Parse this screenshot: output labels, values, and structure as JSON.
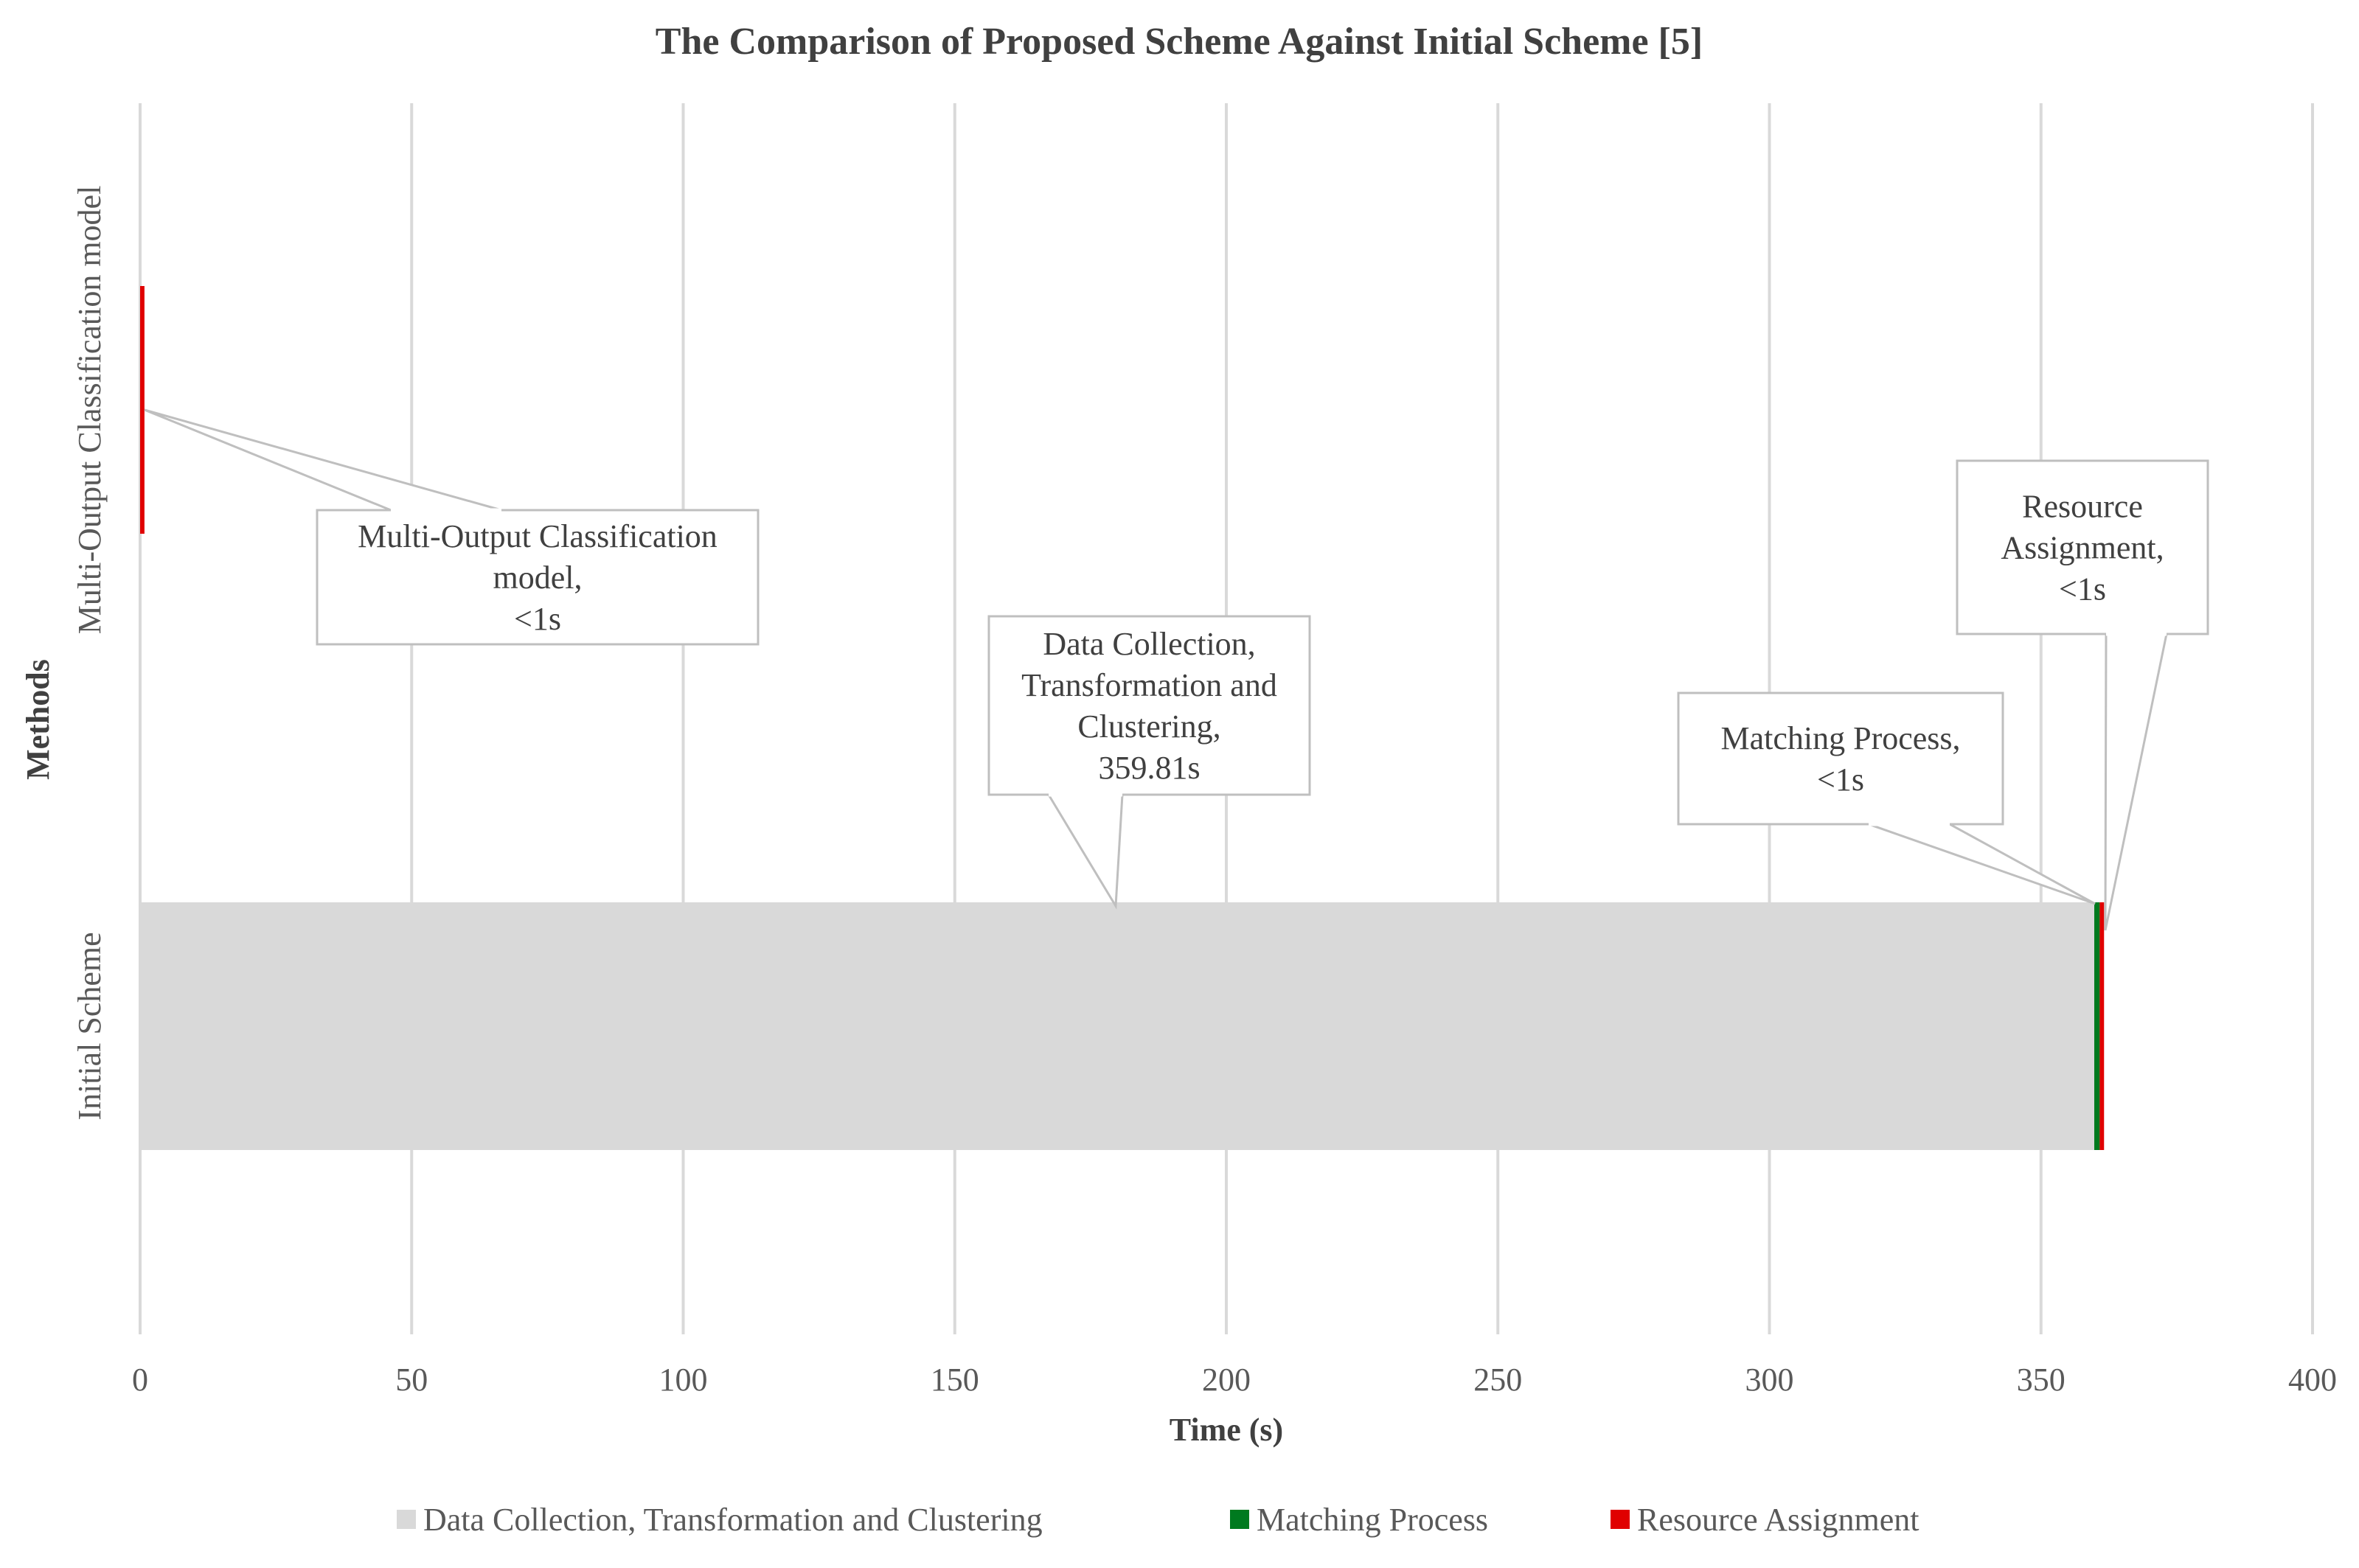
{
  "chart_data": {
    "type": "bar",
    "orientation": "horizontal",
    "stacked": true,
    "title": "The Comparison of Proposed Scheme Against Initial Scheme [5]",
    "xlabel": "Time (s)",
    "ylabel": "Methods",
    "xlim": [
      0,
      400
    ],
    "xticks": [
      "0",
      "50",
      "100",
      "150",
      "200",
      "250",
      "300",
      "350",
      "400"
    ],
    "grid": true,
    "legend_position": "bottom",
    "categories": [
      "Initial Scheme",
      "Multi-Output Classification model"
    ],
    "series": [
      {
        "name": "Data Collection, Transformation and Clustering",
        "color": "#d9d9d9",
        "values": [
          359.81,
          0
        ]
      },
      {
        "name": "Matching Process",
        "color": "#007a1f",
        "values": [
          1,
          0
        ]
      },
      {
        "name": "Resource Assignment",
        "color": "#e00000",
        "values": [
          0.8,
          0.8
        ]
      }
    ],
    "annotations": [
      {
        "lines": [
          "Multi-Output Classification",
          "model,",
          "<1s"
        ]
      },
      {
        "lines": [
          "Data Collection,",
          "Transformation and",
          "Clustering,",
          "359.81s"
        ]
      },
      {
        "lines": [
          "Matching Process,",
          "<1s"
        ]
      },
      {
        "lines": [
          "Resource",
          "Assignment,",
          "<1s"
        ]
      }
    ]
  }
}
